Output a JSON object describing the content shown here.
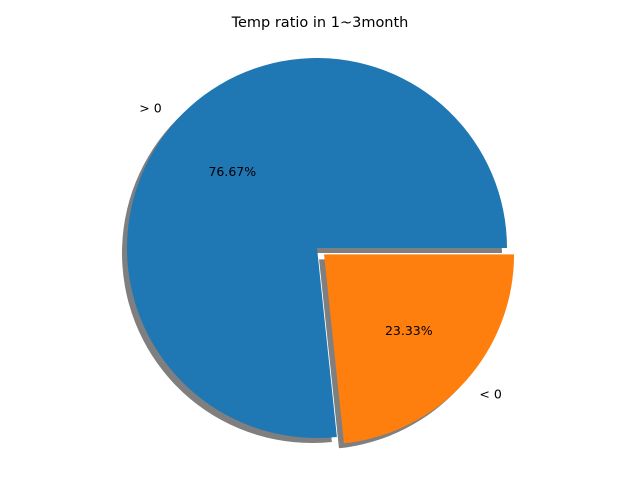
{
  "chart_data": {
    "type": "pie",
    "title": "Temp ratio in 1~3month",
    "slices": [
      {
        "label": "> 0",
        "value": 76.67,
        "pct_label": "76.67%",
        "color": "#1f77b4",
        "explode": 0
      },
      {
        "label": "< 0",
        "value": 23.33,
        "pct_label": "23.33%",
        "color": "#ff7f0e",
        "explode": 0.05
      }
    ],
    "start_angle_deg": 0,
    "direction": "counterclockwise",
    "shadow": true,
    "legend": "none"
  }
}
